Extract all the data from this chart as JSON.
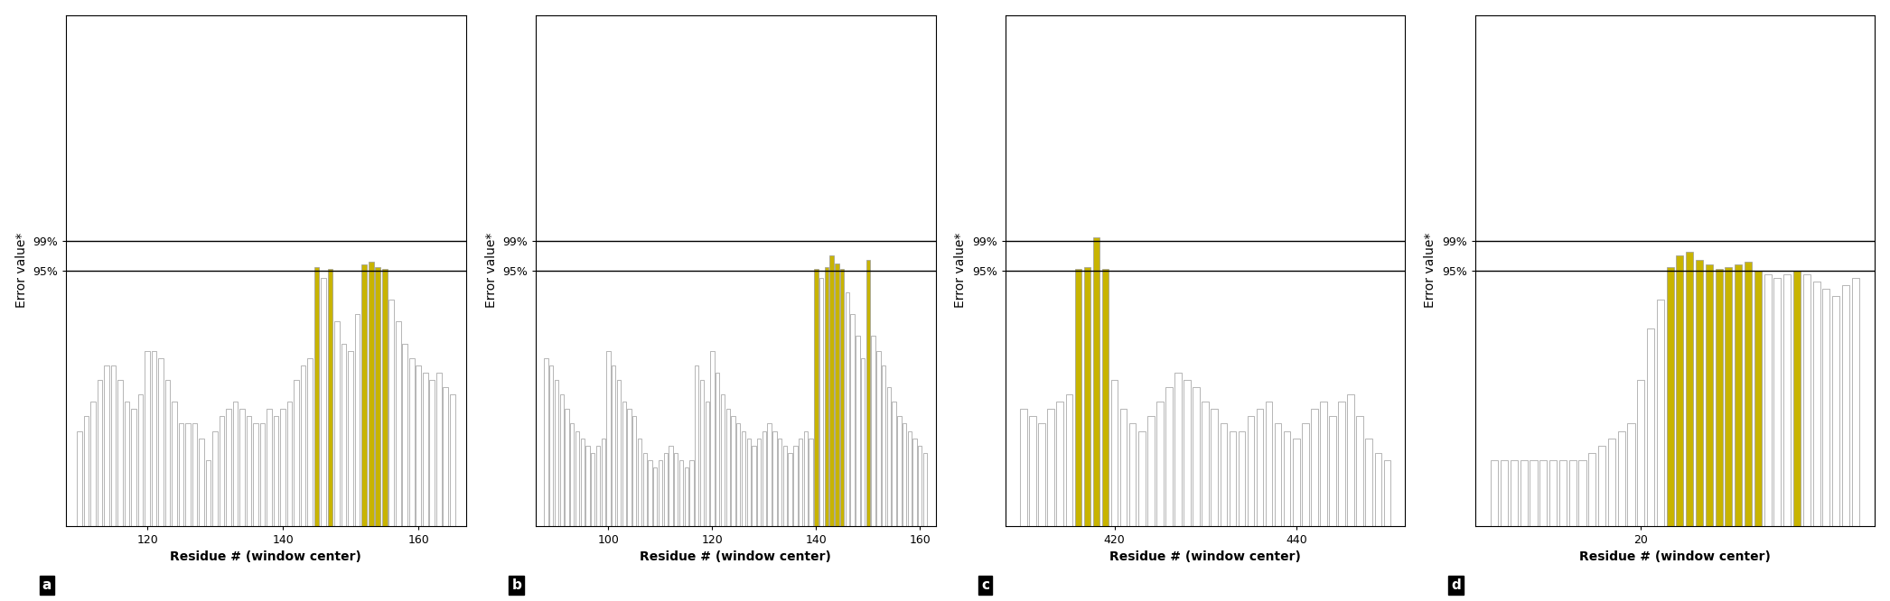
{
  "panels": [
    {
      "label": "a",
      "ylabel": "Error value*",
      "xlabel": "Residue # (window center)",
      "ylim": [
        60,
        130
      ],
      "y95": 95,
      "y99": 99,
      "yticks": [
        95,
        99
      ],
      "residues": [
        110,
        111,
        112,
        113,
        114,
        115,
        116,
        117,
        118,
        119,
        120,
        121,
        122,
        123,
        124,
        125,
        126,
        127,
        128,
        129,
        130,
        131,
        132,
        133,
        134,
        135,
        136,
        137,
        138,
        139,
        140,
        141,
        142,
        143,
        144,
        145,
        146,
        147,
        148,
        149,
        150,
        151,
        152,
        153,
        154,
        155,
        156,
        157,
        158,
        159,
        160,
        161,
        162,
        163,
        164,
        165
      ],
      "values": [
        73,
        75,
        77,
        80,
        82,
        82,
        80,
        77,
        76,
        78,
        84,
        84,
        83,
        80,
        77,
        74,
        74,
        74,
        72,
        69,
        73,
        75,
        76,
        77,
        76,
        75,
        74,
        74,
        76,
        75,
        76,
        77,
        80,
        82,
        83,
        95.5,
        94.0,
        95.2,
        88,
        85,
        84,
        89,
        95.8,
        96.2,
        95.5,
        95.2,
        91,
        88,
        85,
        83,
        82,
        81,
        80,
        81,
        79,
        78
      ],
      "colors": [
        "white",
        "white",
        "white",
        "white",
        "white",
        "white",
        "white",
        "white",
        "white",
        "white",
        "white",
        "white",
        "white",
        "white",
        "white",
        "white",
        "white",
        "white",
        "white",
        "white",
        "white",
        "white",
        "white",
        "white",
        "white",
        "white",
        "white",
        "white",
        "white",
        "white",
        "white",
        "white",
        "white",
        "white",
        "white",
        "#c8b400",
        "white",
        "#c8b400",
        "white",
        "white",
        "white",
        "white",
        "#c8b400",
        "#c8b400",
        "#c8b400",
        "#c8b400",
        "white",
        "white",
        "white",
        "white",
        "white",
        "white",
        "white",
        "white",
        "white",
        "white"
      ],
      "xticks": [
        120,
        140,
        160
      ],
      "xlim": [
        108,
        167
      ]
    },
    {
      "label": "b",
      "ylabel": "Error value*",
      "xlabel": "Residue # (window center)",
      "ylim": [
        60,
        130
      ],
      "y95": 95,
      "y99": 99,
      "yticks": [
        95,
        99
      ],
      "residues": [
        88,
        89,
        90,
        91,
        92,
        93,
        94,
        95,
        96,
        97,
        98,
        99,
        100,
        101,
        102,
        103,
        104,
        105,
        106,
        107,
        108,
        109,
        110,
        111,
        112,
        113,
        114,
        115,
        116,
        117,
        118,
        119,
        120,
        121,
        122,
        123,
        124,
        125,
        126,
        127,
        128,
        129,
        130,
        131,
        132,
        133,
        134,
        135,
        136,
        137,
        138,
        139,
        140,
        141,
        142,
        143,
        144,
        145,
        146,
        147,
        148,
        149,
        150,
        151,
        152,
        153,
        154,
        155,
        156,
        157,
        158,
        159,
        160,
        161
      ],
      "values": [
        83,
        82,
        80,
        78,
        76,
        74,
        73,
        72,
        71,
        70,
        71,
        72,
        84,
        82,
        80,
        77,
        76,
        75,
        72,
        70,
        69,
        68,
        69,
        70,
        71,
        70,
        69,
        68,
        69,
        82,
        80,
        77,
        84,
        81,
        78,
        76,
        75,
        74,
        73,
        72,
        71,
        72,
        73,
        74,
        73,
        72,
        71,
        70,
        71,
        72,
        73,
        72,
        95.2,
        94.0,
        95.5,
        97.0,
        96.0,
        95.2,
        92,
        89,
        86,
        83,
        96.5,
        86,
        84,
        82,
        79,
        77,
        75,
        74,
        73,
        72,
        71,
        70
      ],
      "colors": [
        "white",
        "white",
        "white",
        "white",
        "white",
        "white",
        "white",
        "white",
        "white",
        "white",
        "white",
        "white",
        "white",
        "white",
        "white",
        "white",
        "white",
        "white",
        "white",
        "white",
        "white",
        "white",
        "white",
        "white",
        "white",
        "white",
        "white",
        "white",
        "white",
        "white",
        "white",
        "white",
        "white",
        "white",
        "white",
        "white",
        "white",
        "white",
        "white",
        "white",
        "white",
        "white",
        "white",
        "white",
        "white",
        "white",
        "white",
        "white",
        "white",
        "white",
        "white",
        "white",
        "#c8b400",
        "white",
        "#c8b400",
        "#c8b400",
        "#c8b400",
        "#c8b400",
        "white",
        "white",
        "white",
        "white",
        "#c8b400",
        "white",
        "white",
        "white",
        "white",
        "white",
        "white",
        "white",
        "white",
        "white",
        "white",
        "white"
      ],
      "xticks": [
        100,
        120,
        140,
        160
      ],
      "xlim": [
        86,
        163
      ]
    },
    {
      "label": "c",
      "ylabel": "Error value*",
      "xlabel": "Residue # (window center)",
      "ylim": [
        60,
        130
      ],
      "y95": 95,
      "y99": 99,
      "yticks": [
        95,
        99
      ],
      "residues": [
        410,
        411,
        412,
        413,
        414,
        415,
        416,
        417,
        418,
        419,
        420,
        421,
        422,
        423,
        424,
        425,
        426,
        427,
        428,
        429,
        430,
        431,
        432,
        433,
        434,
        435,
        436,
        437,
        438,
        439,
        440,
        441,
        442,
        443,
        444,
        445,
        446,
        447,
        448,
        449,
        450
      ],
      "values": [
        76,
        75,
        74,
        76,
        77,
        78,
        95.2,
        95.5,
        99.5,
        95.2,
        80,
        76,
        74,
        73,
        75,
        77,
        79,
        81,
        80,
        79,
        77,
        76,
        74,
        73,
        73,
        75,
        76,
        77,
        74,
        73,
        72,
        74,
        76,
        77,
        75,
        77,
        78,
        75,
        72,
        70,
        69
      ],
      "colors": [
        "white",
        "white",
        "white",
        "white",
        "white",
        "white",
        "#c8b400",
        "#c8b400",
        "#c8b400",
        "#c8b400",
        "white",
        "white",
        "white",
        "white",
        "white",
        "white",
        "white",
        "white",
        "white",
        "white",
        "white",
        "white",
        "white",
        "white",
        "white",
        "white",
        "white",
        "white",
        "white",
        "white",
        "white",
        "white",
        "white",
        "white",
        "white",
        "white",
        "white",
        "white",
        "white",
        "white",
        "white"
      ],
      "xticks": [
        420,
        440
      ],
      "xlim": [
        408,
        452
      ]
    },
    {
      "label": "d",
      "ylabel": "Error value*",
      "xlabel": "Residue # (window center)",
      "ylim": [
        60,
        130
      ],
      "y95": 95,
      "y99": 99,
      "yticks": [
        95,
        99
      ],
      "residues": [
        5,
        6,
        7,
        8,
        9,
        10,
        11,
        12,
        13,
        14,
        15,
        16,
        17,
        18,
        19,
        20,
        21,
        22,
        23,
        24,
        25,
        26,
        27,
        28,
        29,
        30,
        31,
        32,
        33,
        34,
        35,
        36,
        37,
        38,
        39,
        40,
        41,
        42
      ],
      "values": [
        69,
        69,
        69,
        69,
        69,
        69,
        69,
        69,
        69,
        69,
        70,
        71,
        72,
        73,
        74,
        80,
        87,
        91,
        95.5,
        97.0,
        97.5,
        96.5,
        95.8,
        95.2,
        95.5,
        95.8,
        96.2,
        95.0,
        94.5,
        94.0,
        94.5,
        95.0,
        94.5,
        93.5,
        92.5,
        91.5,
        93,
        94.0
      ],
      "colors": [
        "white",
        "white",
        "white",
        "white",
        "white",
        "white",
        "white",
        "white",
        "white",
        "white",
        "white",
        "white",
        "white",
        "white",
        "white",
        "white",
        "white",
        "white",
        "#c8b400",
        "#c8b400",
        "#c8b400",
        "#c8b400",
        "#c8b400",
        "#c8b400",
        "#c8b400",
        "#c8b400",
        "#c8b400",
        "#c8b400",
        "white",
        "white",
        "white",
        "#c8b400",
        "white",
        "white",
        "white",
        "white",
        "white",
        "white"
      ],
      "xticks": [
        20
      ],
      "xlim": [
        3,
        44
      ]
    }
  ],
  "background_color": "#ffffff",
  "bar_edge_color": "#999999",
  "hline_color": "#000000",
  "hline_lw": 1.0,
  "ylabel_fontsize": 10,
  "xlabel_fontsize": 10,
  "tick_fontsize": 9,
  "label_fontsize": 11,
  "bar_width": 0.75
}
